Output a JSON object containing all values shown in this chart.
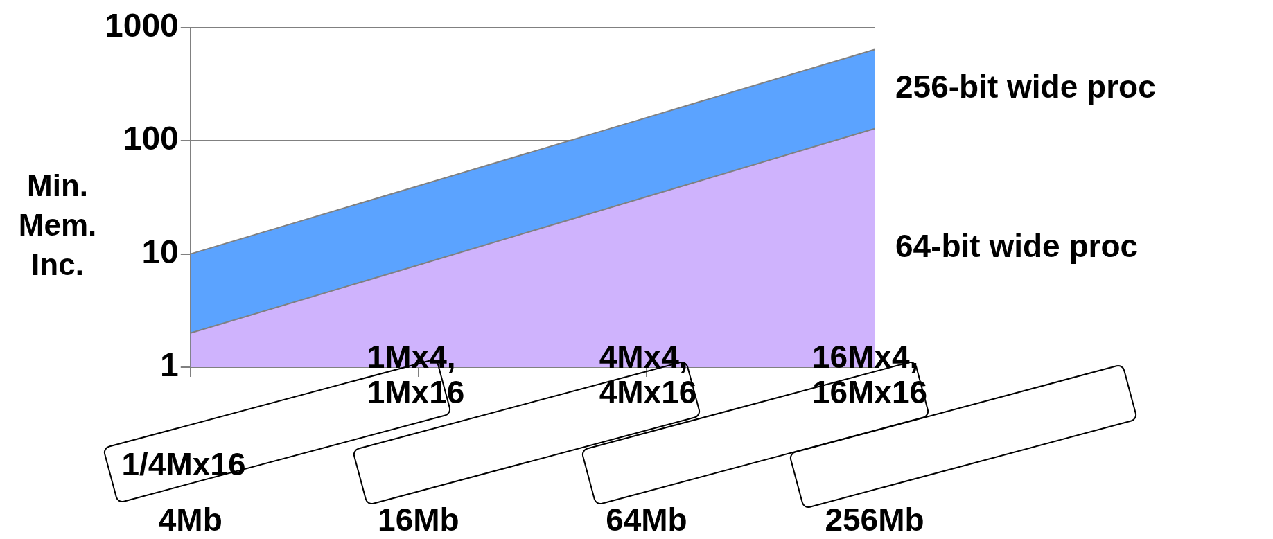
{
  "chart_data": {
    "type": "area",
    "ylabel": "Min.\nMem.\nInc.",
    "categories": [
      "4Mb",
      "16Mb",
      "64Mb",
      "256Mb"
    ],
    "series": [
      {
        "name": "64-bit wide proc",
        "color": "#cfb3fd",
        "values": [
          2,
          8,
          32,
          128
        ]
      },
      {
        "name": "256-bit wide proc",
        "color": "#5ba3ff",
        "values": [
          10,
          40,
          160,
          640
        ]
      }
    ],
    "ylim": [
      1,
      1000
    ],
    "yticks": [
      1,
      10,
      100,
      1000
    ],
    "log": true,
    "grid": "y",
    "legend": false,
    "annotations": [
      "1/4Mx16",
      "1Mx4,\n1Mx16",
      "4Mx4,\n4Mx16",
      "16Mx4,\n16Mx16"
    ]
  }
}
